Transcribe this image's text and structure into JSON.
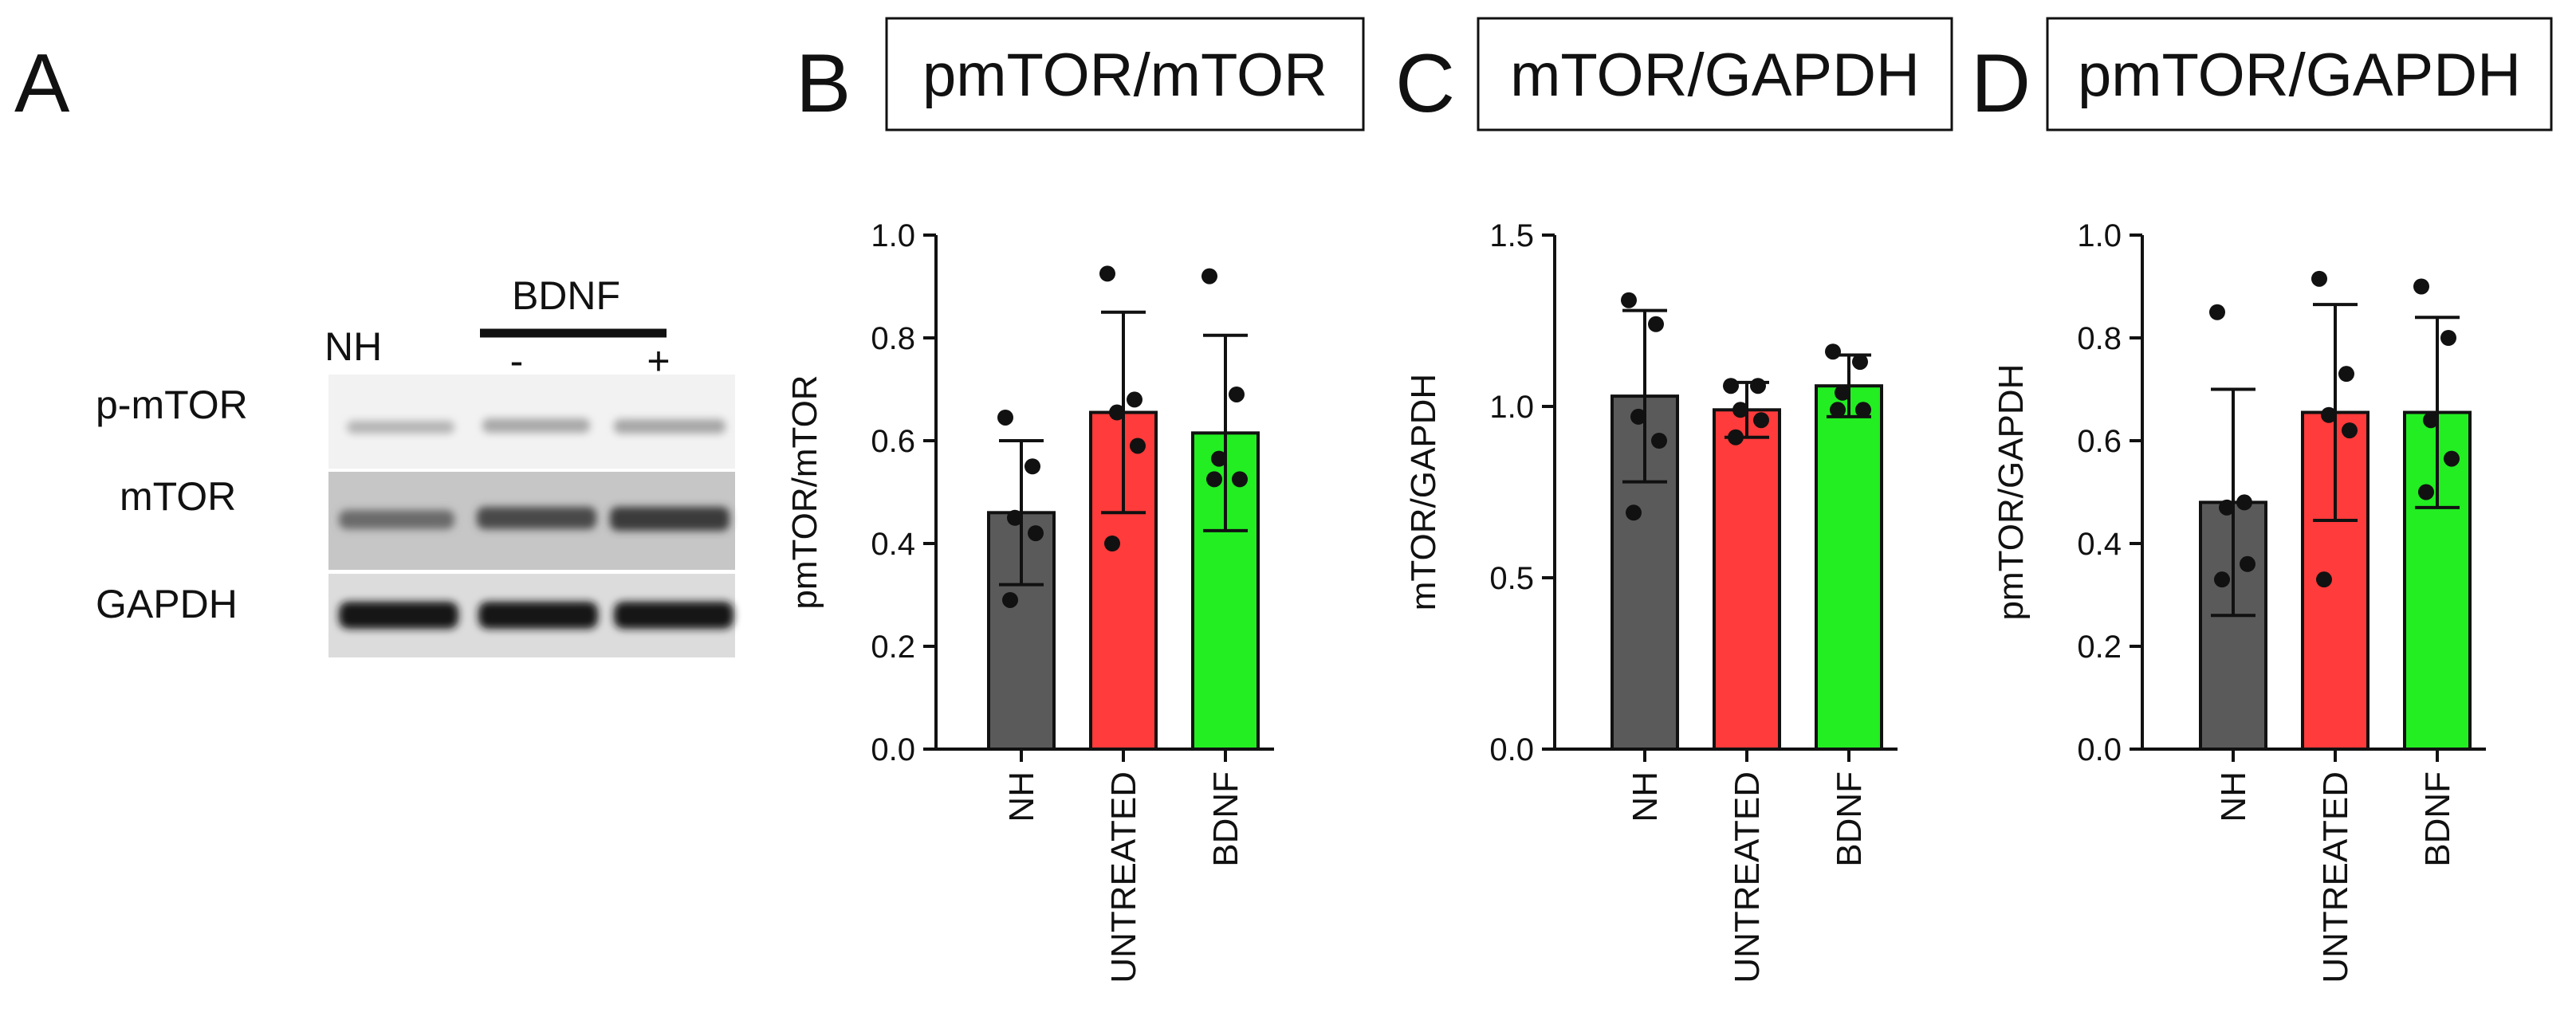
{
  "panels": {
    "a": {
      "letter": "A"
    },
    "b": {
      "letter": "B",
      "title": "pmTOR/mTOR"
    },
    "c": {
      "letter": "C",
      "title": "mTOR/GAPDH"
    },
    "d": {
      "letter": "D",
      "title": "pmTOR/GAPDH"
    }
  },
  "blot": {
    "treatment_label": "BDNF",
    "lane_labels": [
      "NH",
      "-",
      "+"
    ],
    "row_labels": [
      "p-mTOR",
      "mTOR",
      "GAPDH"
    ]
  },
  "colors": {
    "nh": "#5a5a5a",
    "untreated": "#ff3b3b",
    "bdnf": "#22ee22"
  },
  "chart_data": [
    {
      "type": "bar",
      "panel": "B",
      "title": "pmTOR/mTOR",
      "ylabel": "pmTOR/mTOR",
      "xlabel": "",
      "categories": [
        "NH",
        "UNTREATED",
        "BDNF"
      ],
      "values": [
        0.46,
        0.655,
        0.615
      ],
      "errors": [
        0.14,
        0.195,
        0.19
      ],
      "points": [
        [
          0.645,
          0.55,
          0.45,
          0.42,
          0.29
        ],
        [
          0.925,
          0.68,
          0.655,
          0.59,
          0.4
        ],
        [
          0.92,
          0.69,
          0.565,
          0.525,
          0.525
        ]
      ],
      "ylim": [
        0,
        1.0
      ],
      "yticks": [
        "0.0",
        "0.2",
        "0.4",
        "0.6",
        "0.8",
        "1.0"
      ]
    },
    {
      "type": "bar",
      "panel": "C",
      "title": "mTOR/GAPDH",
      "ylabel": "mTOR/GAPDH",
      "xlabel": "",
      "categories": [
        "NH",
        "UNTREATED",
        "BDNF"
      ],
      "values": [
        1.03,
        0.99,
        1.06
      ],
      "errors": [
        0.25,
        0.08,
        0.09
      ],
      "points": [
        [
          1.31,
          1.24,
          0.97,
          0.9,
          0.69
        ],
        [
          1.06,
          1.06,
          0.99,
          0.96,
          0.91
        ],
        [
          1.16,
          1.13,
          1.04,
          0.99,
          0.99
        ]
      ],
      "ylim": [
        0,
        1.5
      ],
      "yticks": [
        "0.0",
        "0.5",
        "1.0",
        "1.5"
      ]
    },
    {
      "type": "bar",
      "panel": "D",
      "title": "pmTOR/GAPDH",
      "ylabel": "pmTOR/GAPDH",
      "xlabel": "",
      "categories": [
        "NH",
        "UNTREATED",
        "BDNF"
      ],
      "values": [
        0.48,
        0.655,
        0.655
      ],
      "errors": [
        0.22,
        0.21,
        0.185
      ],
      "points": [
        [
          0.85,
          0.48,
          0.47,
          0.36,
          0.33
        ],
        [
          0.915,
          0.73,
          0.65,
          0.62,
          0.33
        ],
        [
          0.9,
          0.8,
          0.64,
          0.565,
          0.5
        ]
      ],
      "ylim": [
        0,
        1.0
      ],
      "yticks": [
        "0.0",
        "0.2",
        "0.4",
        "0.6",
        "0.8",
        "1.0"
      ]
    }
  ]
}
